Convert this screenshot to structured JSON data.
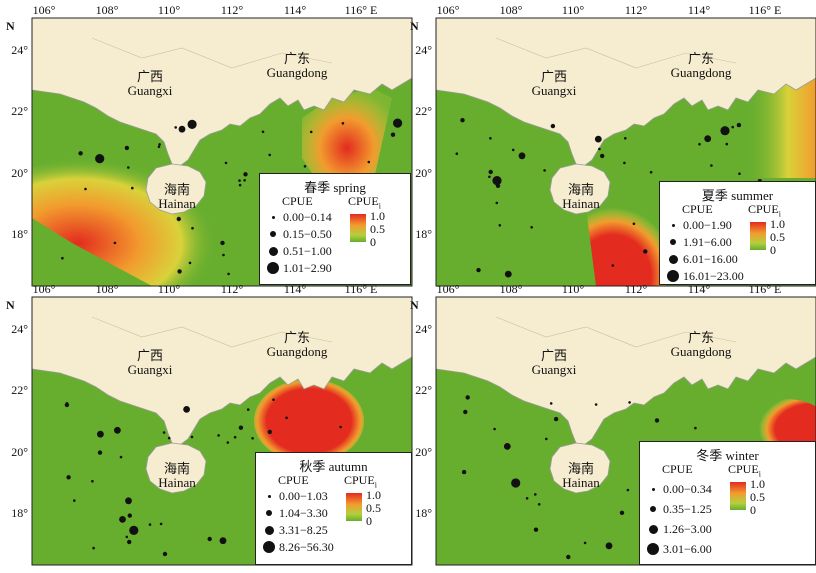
{
  "map": {
    "north": "N",
    "longitudes": [
      "106°",
      "108°",
      "110°",
      "112°",
      "114°",
      "116° E"
    ],
    "latitudes": [
      "24°",
      "22°",
      "20°",
      "18°"
    ],
    "places": {
      "guangxi_cn": "广西",
      "guangxi_en": "Guangxi",
      "guangdong_cn": "广东",
      "guangdong_en": "Guangdong",
      "hainan_cn": "海南",
      "hainan_en": "Hainan"
    },
    "colors": {
      "land": "#f6eccf",
      "coast": "#9a9a9a",
      "green": "#67ae2f",
      "yellow": "#d9d23a",
      "orange": "#f29b2e",
      "red": "#e32b1f"
    }
  },
  "legend_common": {
    "cpue": "CPUE",
    "cpuei": "CPUE",
    "cpuei_sub": "i",
    "g_max": "1.0",
    "g_mid": "0.5",
    "g_min": "0"
  },
  "panels": [
    {
      "id": "spring",
      "title": "春季 spring",
      "classes": [
        "0.00−0.14",
        "0.15−0.50",
        "0.51−1.00",
        "1.01−2.90"
      ]
    },
    {
      "id": "summer",
      "title": "夏季 summer",
      "classes": [
        "0.00−1.90",
        "1.91−6.00",
        "6.01−16.00",
        "16.01−23.00"
      ]
    },
    {
      "id": "autumn",
      "title": "秋季 autumn",
      "classes": [
        "0.00−1.03",
        "1.04−3.30",
        "3.31−8.25",
        "8.26−56.30"
      ]
    },
    {
      "id": "winter",
      "title": "冬季 winter",
      "classes": [
        "0.00−0.34",
        "0.35−1.25",
        "1.26−3.00",
        "3.01−6.00"
      ]
    }
  ]
}
